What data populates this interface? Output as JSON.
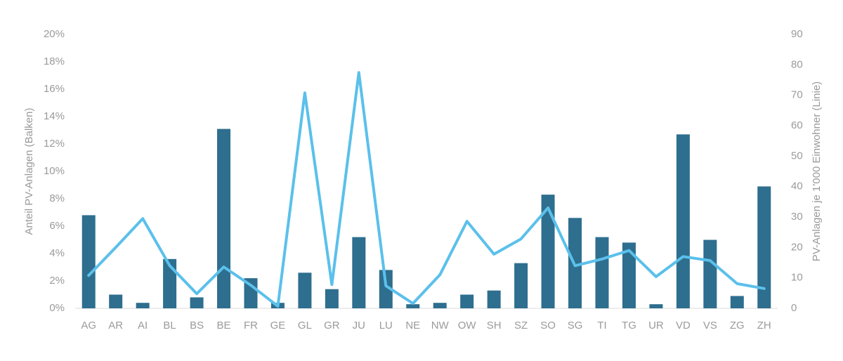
{
  "chart_data": {
    "type": "bar+line",
    "ylabel": "Anteil PV-Anlagen (Balken)",
    "y2label": "PV-Anlagen je 1'000 Einwohner (Linie)",
    "categories": [
      "AG",
      "AR",
      "AI",
      "BL",
      "BS",
      "BE",
      "FR",
      "GE",
      "GL",
      "GR",
      "JU",
      "LU",
      "NE",
      "NW",
      "OW",
      "SH",
      "SZ",
      "SO",
      "SG",
      "TI",
      "TG",
      "UR",
      "VD",
      "VS",
      "ZG",
      "ZH"
    ],
    "series": [
      {
        "type": "bar",
        "color": "#2e6e8e",
        "values": [
          6.8,
          1.0,
          0.4,
          3.6,
          0.8,
          13.1,
          2.2,
          0.4,
          2.6,
          1.4,
          5.2,
          2.8,
          0.3,
          0.4,
          1.0,
          1.3,
          3.3,
          8.3,
          6.6,
          5.2,
          4.8,
          0.3,
          12.7,
          5.0,
          0.9,
          8.9
        ]
      },
      {
        "type": "line",
        "axis": "y2",
        "color": "#5bc0eb",
        "values": [
          10.8,
          20,
          29.5,
          14,
          4.8,
          13.6,
          7.6,
          0.7,
          70.8,
          7.8,
          77.5,
          7.4,
          1.6,
          11,
          28.6,
          17.8,
          22.8,
          33,
          14,
          16.2,
          19,
          10.4,
          17,
          15.7,
          8.1,
          6.5
        ]
      }
    ],
    "ylim": [
      0,
      20
    ],
    "yticks": [
      {
        "value": 0,
        "label": "0%"
      },
      {
        "value": 2,
        "label": "2%"
      },
      {
        "value": 4,
        "label": "4%"
      },
      {
        "value": 6,
        "label": "6%"
      },
      {
        "value": 8,
        "label": "8%"
      },
      {
        "value": 10,
        "label": "10%"
      },
      {
        "value": 12,
        "label": "12%"
      },
      {
        "value": 14,
        "label": "14%"
      },
      {
        "value": 16,
        "label": "16%"
      },
      {
        "value": 18,
        "label": "18%"
      },
      {
        "value": 20,
        "label": "20%"
      }
    ],
    "y2lim": [
      0,
      90
    ],
    "y2ticks": [
      0,
      10,
      20,
      30,
      40,
      50,
      60,
      70,
      80,
      90
    ],
    "grid": false
  }
}
